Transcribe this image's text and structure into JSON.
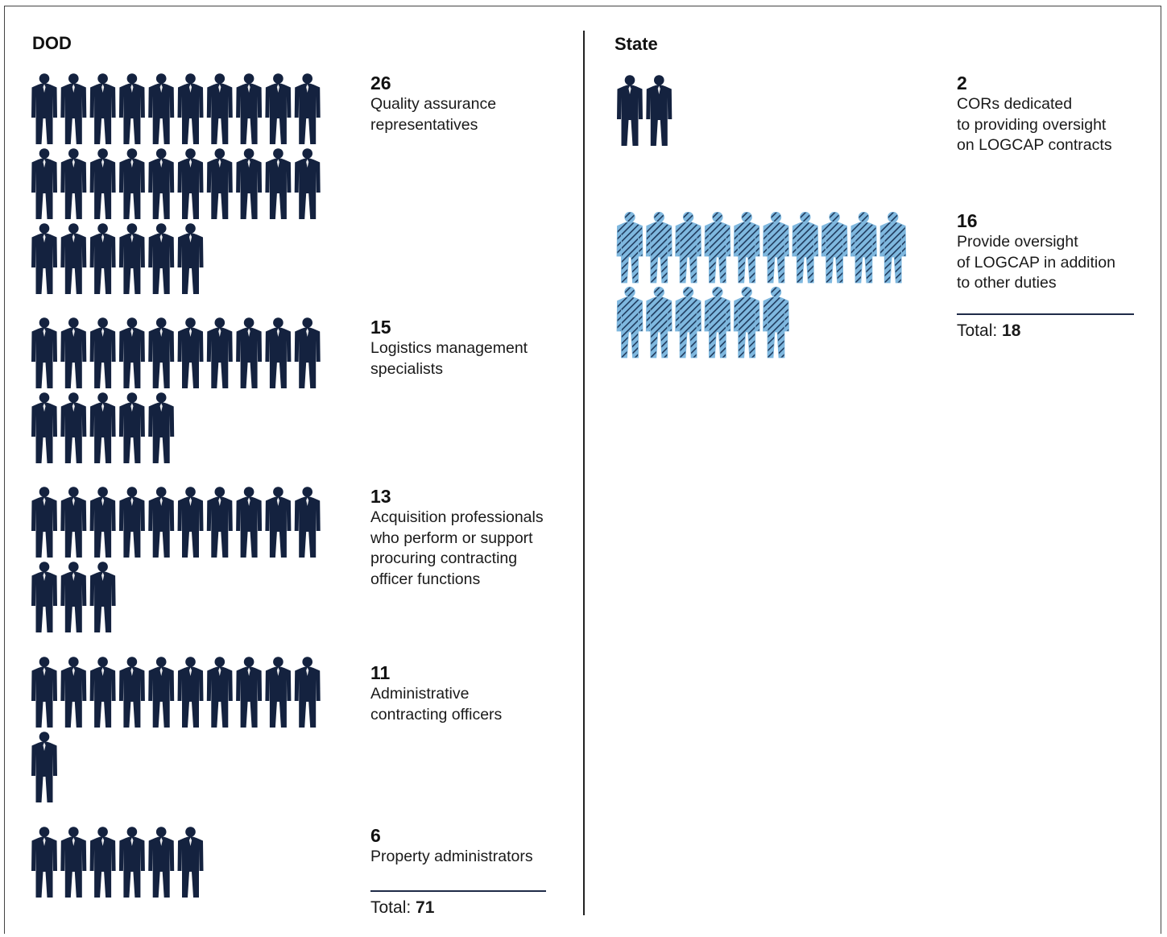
{
  "dod": {
    "title": "DOD",
    "groups": [
      {
        "count": 26,
        "count_label": "26",
        "label": "Quality assurance\nrepresentatives"
      },
      {
        "count": 15,
        "count_label": "15",
        "label": "Logistics management\nspecialists"
      },
      {
        "count": 13,
        "count_label": "13",
        "label": "Acquisition professionals\nwho perform or support\nprocuring contracting\nofficer functions"
      },
      {
        "count": 11,
        "count_label": "11",
        "label": "Administrative\ncontracting officers"
      },
      {
        "count": 6,
        "count_label": "6",
        "label": "Property administrators"
      }
    ],
    "total_label": "Total:",
    "total_value": "71"
  },
  "state": {
    "title": "State",
    "groups": [
      {
        "count": 2,
        "count_label": "2",
        "label": "CORs dedicated\nto providing oversight\non LOGCAP contracts",
        "style": "solid"
      },
      {
        "count": 16,
        "count_label": "16",
        "label": "Provide oversight\nof LOGCAP in addition\nto other duties",
        "style": "hatched"
      }
    ],
    "total_label": "Total:",
    "total_value": "18"
  },
  "colors": {
    "solid_figure": "#14223f",
    "hatched_fill": "#7fb8df",
    "hatched_stroke": "#1f3a5c"
  },
  "icon": "person-icon",
  "icons_per_row": 10
}
